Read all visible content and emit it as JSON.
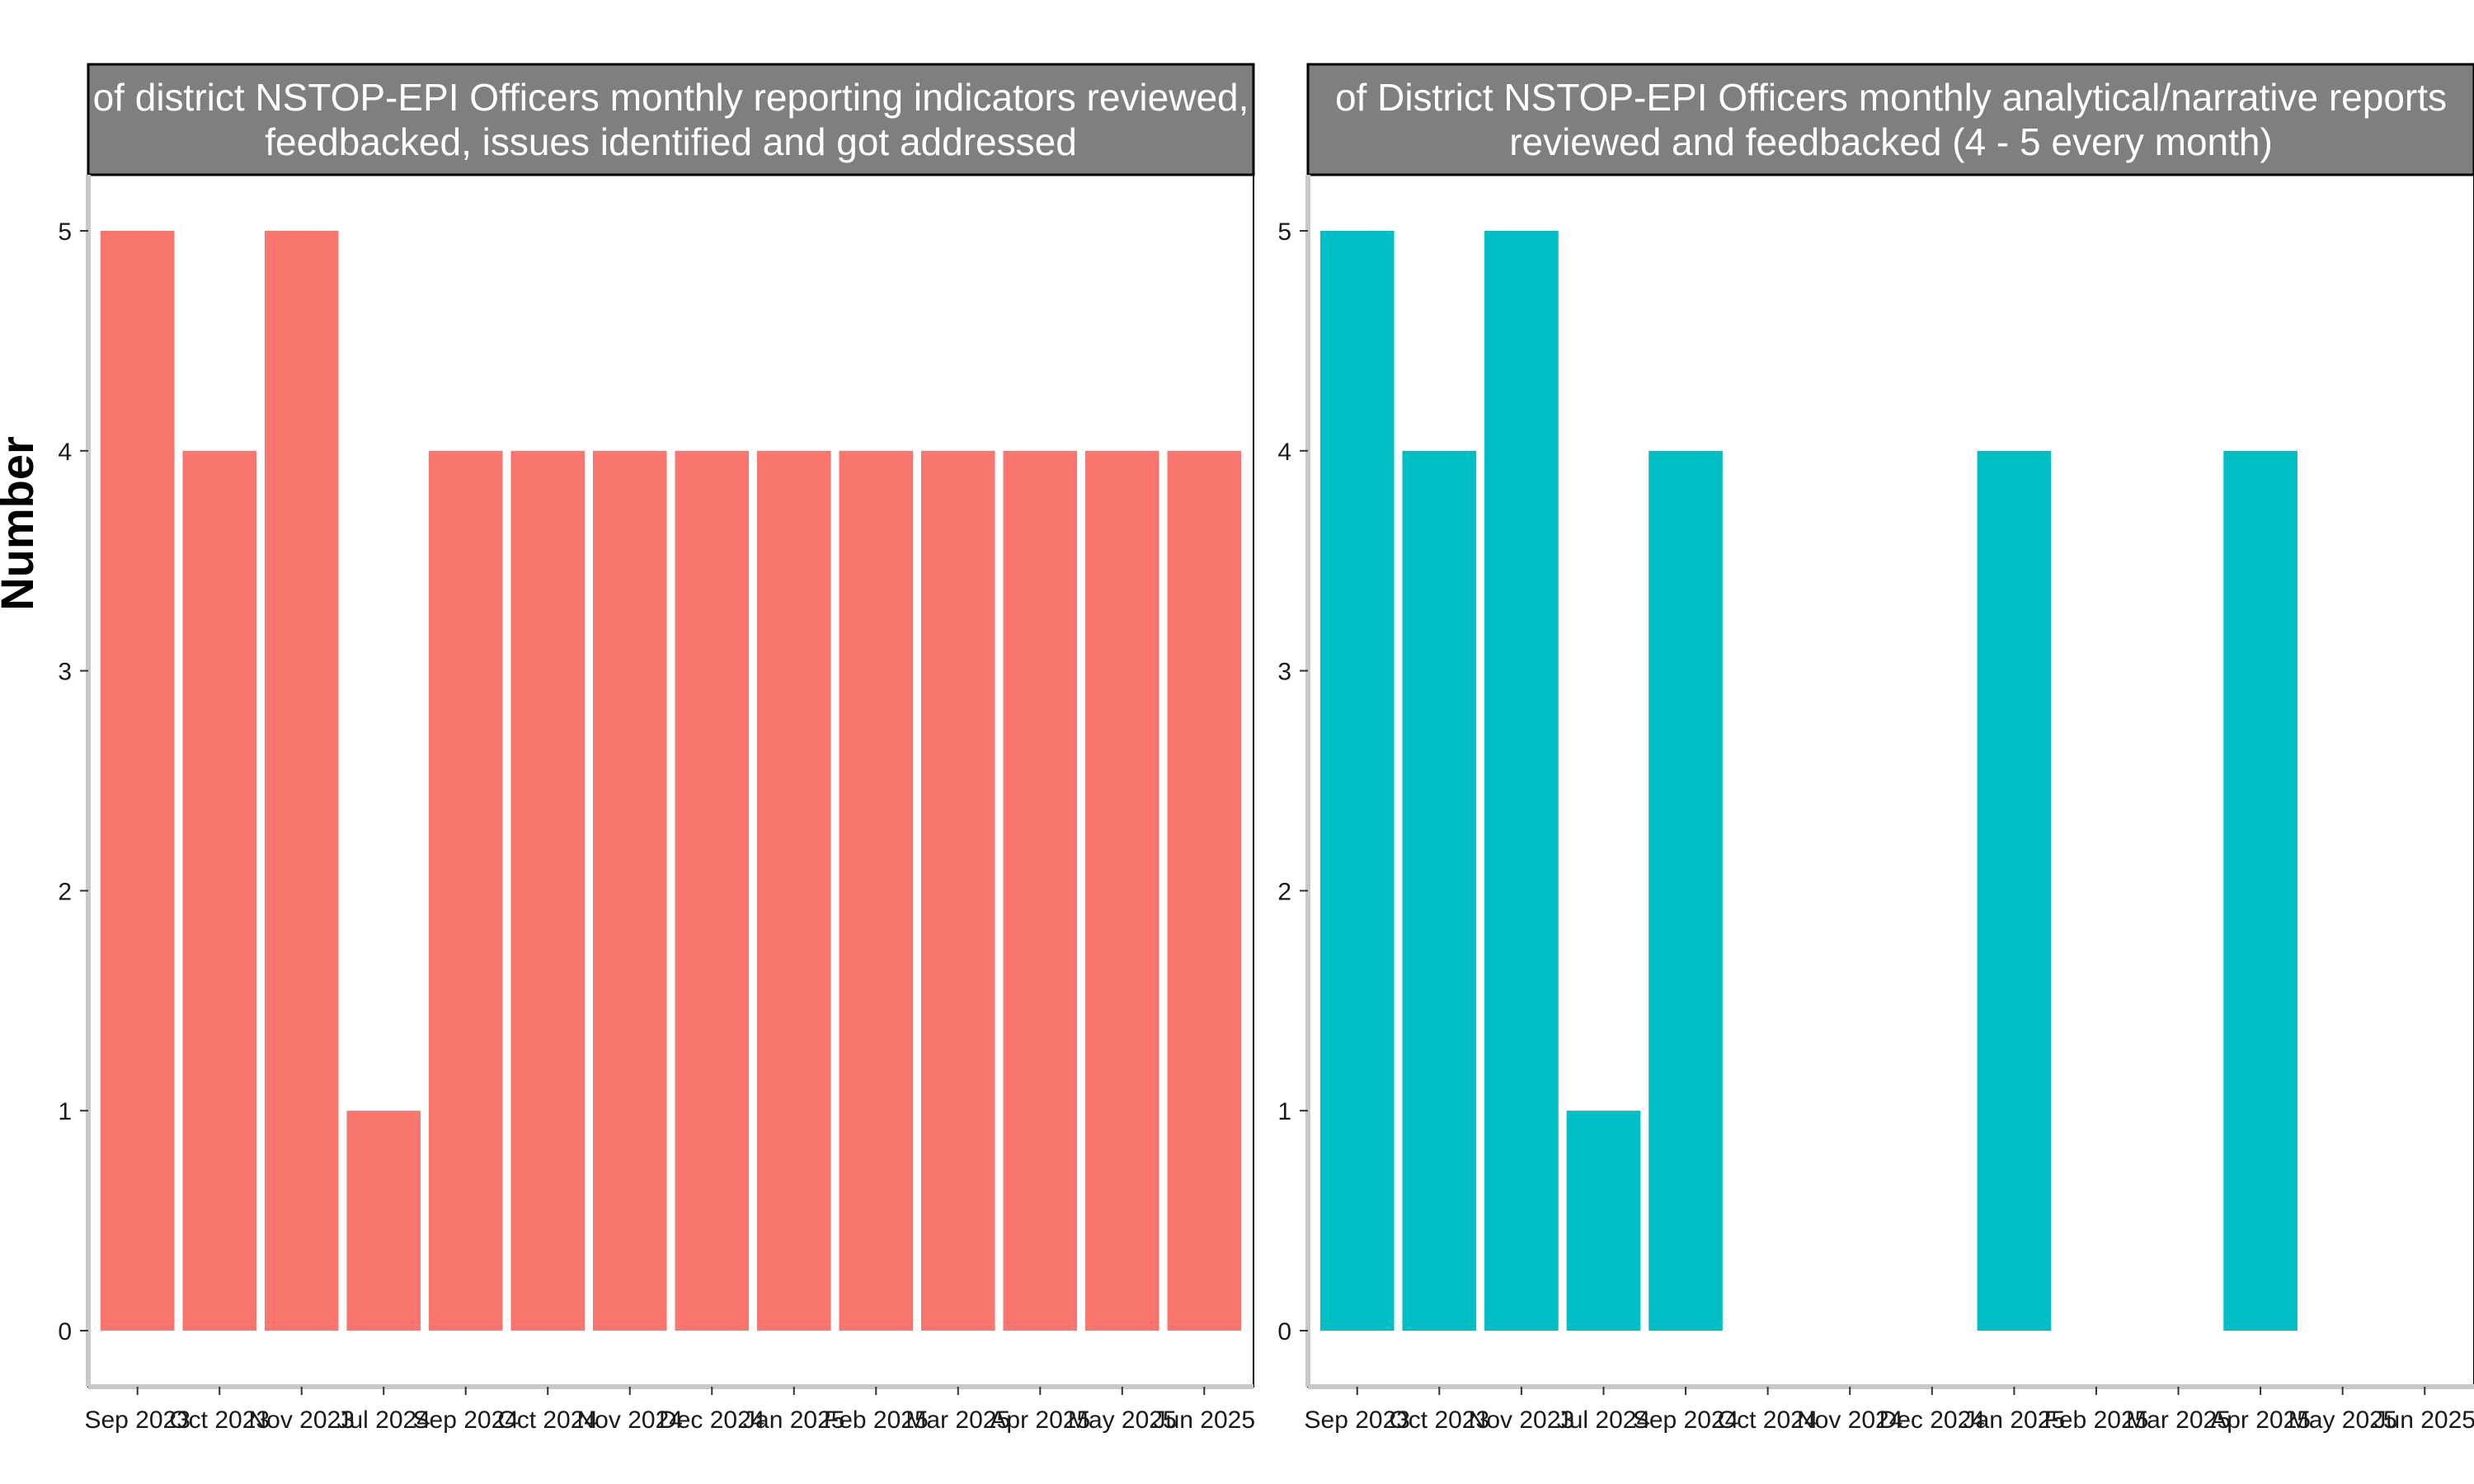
{
  "chart_data": [
    {
      "type": "bar",
      "title_lines": [
        "of district NSTOP-EPI Officers monthly reporting indicators reviewed,",
        "feedbacked, issues identified and got addressed"
      ],
      "ylabel": "Number",
      "ylim": [
        0,
        5.25
      ],
      "yticks": [
        0,
        1,
        2,
        3,
        4,
        5
      ],
      "categories": [
        "Sep 2023",
        "Oct 2023",
        "Nov 2023",
        "Jul 2024",
        "Sep 2024",
        "Oct 2024",
        "Nov 2024",
        "Dec 2024",
        "Jan 2025",
        "Feb 2025",
        "Mar 2025",
        "Apr 2025",
        "May 2025",
        "Jun 2025"
      ],
      "values": [
        5,
        4,
        5,
        1,
        4,
        4,
        4,
        4,
        4,
        4,
        4,
        4,
        4,
        4
      ],
      "color": "#F8766D",
      "grid": false
    },
    {
      "type": "bar",
      "title_lines": [
        "of District NSTOP-EPI Officers monthly analytical/narrative reports",
        "reviewed and feedbacked (4 - 5 every month)"
      ],
      "ylabel": "",
      "ylim": [
        0,
        5.25
      ],
      "yticks": [
        0,
        1,
        2,
        3,
        4,
        5
      ],
      "categories": [
        "Sep 2023",
        "Oct 2023",
        "Nov 2023",
        "Jul 2024",
        "Sep 2024",
        "Oct 2024",
        "Nov 2024",
        "Dec 2024",
        "Jan 2025",
        "Feb 2025",
        "Mar 2025",
        "Apr 2025",
        "May 2025",
        "Jun 2025"
      ],
      "values": [
        5,
        4,
        5,
        1,
        4,
        null,
        null,
        null,
        4,
        null,
        null,
        4,
        null,
        null
      ],
      "color": "#00BFC4",
      "grid": false
    }
  ],
  "colors": {
    "strip_background": "#7f7f7f",
    "panel_border": "#000000",
    "axis_line": "#c8c8c8"
  }
}
